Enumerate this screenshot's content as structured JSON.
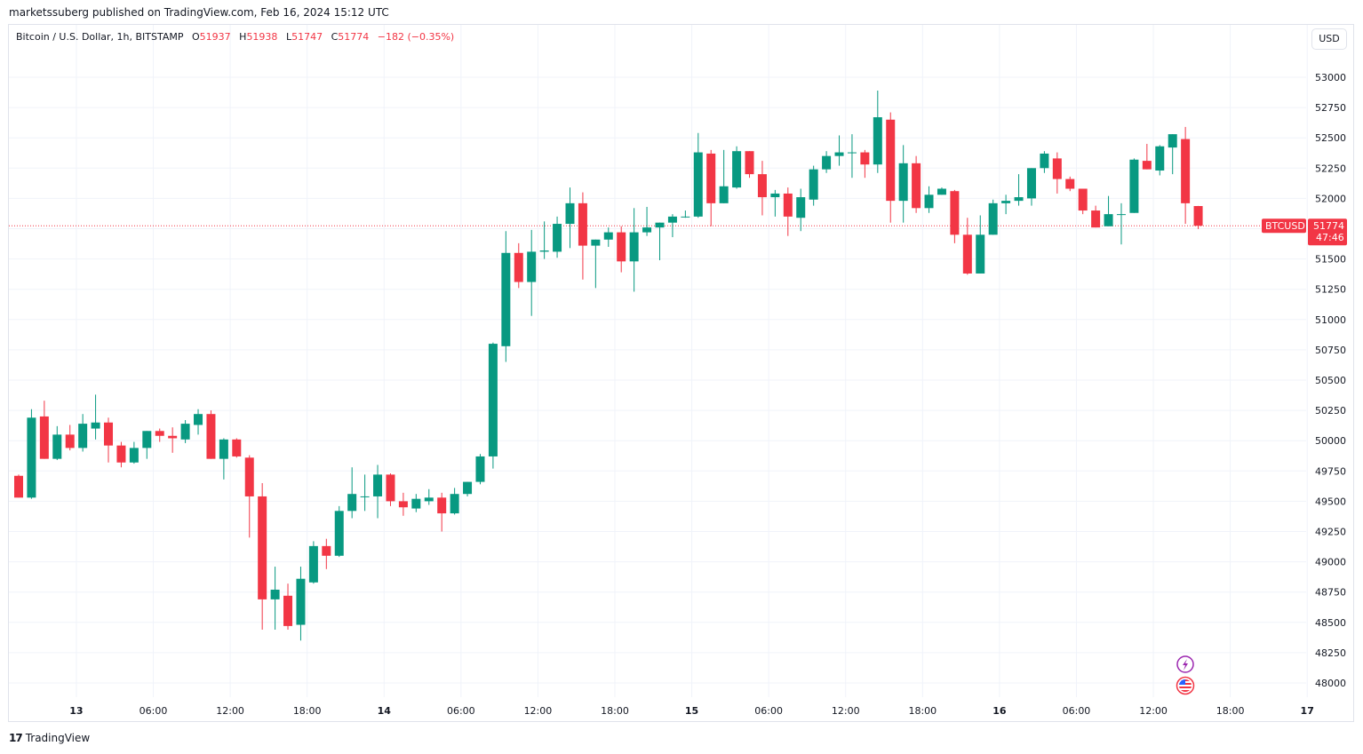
{
  "header": {
    "publish_line": "marketssuberg published on TradingView.com, Feb 16, 2024 15:12 UTC"
  },
  "legend": {
    "symbol": "Bitcoin / U.S. Dollar, 1h, BITSTAMP",
    "open_label": "O",
    "open": "51937",
    "high_label": "H",
    "high": "51938",
    "low_label": "L",
    "low": "51747",
    "close_label": "C",
    "close": "51774",
    "change": "−182 (−0.35%)"
  },
  "toolbar": {
    "currency_label": "USD"
  },
  "price_badge": {
    "symbol": "BTCUSD",
    "price": "51774",
    "countdown": "47:46"
  },
  "footer": {
    "brand": "TradingView"
  },
  "colors": {
    "up": "#089981",
    "down": "#f23645",
    "grid": "#f0f3fa"
  },
  "icons": [
    "lightning-event-icon",
    "us-flag-event-icon"
  ],
  "chart_data": {
    "type": "candlestick",
    "interval": "1h",
    "ylim": [
      47850,
      53200
    ],
    "y_ticks": [
      48000,
      48250,
      48500,
      48750,
      49000,
      49250,
      49500,
      49750,
      50000,
      50250,
      50500,
      50750,
      51000,
      51250,
      51500,
      51750,
      52000,
      52250,
      52500,
      52750,
      53000
    ],
    "x_ticks": [
      {
        "label": "13",
        "day": true,
        "index": 4.5
      },
      {
        "label": "06:00",
        "day": false,
        "index": 10.5
      },
      {
        "label": "12:00",
        "day": false,
        "index": 16.5
      },
      {
        "label": "18:00",
        "day": false,
        "index": 22.5
      },
      {
        "label": "14",
        "day": true,
        "index": 28.5
      },
      {
        "label": "06:00",
        "day": false,
        "index": 34.5
      },
      {
        "label": "12:00",
        "day": false,
        "index": 40.5
      },
      {
        "label": "18:00",
        "day": false,
        "index": 46.5
      },
      {
        "label": "15",
        "day": true,
        "index": 52.5
      },
      {
        "label": "06:00",
        "day": false,
        "index": 58.5
      },
      {
        "label": "12:00",
        "day": false,
        "index": 64.5
      },
      {
        "label": "18:00",
        "day": false,
        "index": 70.5
      },
      {
        "label": "16",
        "day": true,
        "index": 76.5
      },
      {
        "label": "06:00",
        "day": false,
        "index": 82.5
      },
      {
        "label": "12:00",
        "day": false,
        "index": 88.5
      },
      {
        "label": "18:00",
        "day": false,
        "index": 94.5
      },
      {
        "label": "17",
        "day": true,
        "index": 100.5
      }
    ],
    "current_price": 51774,
    "candles": [
      {
        "o": 49710,
        "h": 49720,
        "l": 49530,
        "c": 49530
      },
      {
        "o": 49530,
        "h": 50260,
        "l": 49520,
        "c": 50190
      },
      {
        "o": 50200,
        "h": 50330,
        "l": 49850,
        "c": 49850
      },
      {
        "o": 49850,
        "h": 50120,
        "l": 49840,
        "c": 50050
      },
      {
        "o": 50050,
        "h": 50130,
        "l": 49920,
        "c": 49940
      },
      {
        "o": 49940,
        "h": 50220,
        "l": 49910,
        "c": 50140
      },
      {
        "o": 50100,
        "h": 50380,
        "l": 50010,
        "c": 50150
      },
      {
        "o": 50150,
        "h": 50190,
        "l": 49820,
        "c": 49960
      },
      {
        "o": 49960,
        "h": 49990,
        "l": 49780,
        "c": 49820
      },
      {
        "o": 49820,
        "h": 49990,
        "l": 49810,
        "c": 49940
      },
      {
        "o": 49940,
        "h": 50080,
        "l": 49850,
        "c": 50080
      },
      {
        "o": 50080,
        "h": 50100,
        "l": 49990,
        "c": 50040
      },
      {
        "o": 50040,
        "h": 50110,
        "l": 49900,
        "c": 50020
      },
      {
        "o": 50010,
        "h": 50170,
        "l": 49980,
        "c": 50140
      },
      {
        "o": 50130,
        "h": 50260,
        "l": 50050,
        "c": 50220
      },
      {
        "o": 50220,
        "h": 50250,
        "l": 49850,
        "c": 49850
      },
      {
        "o": 49850,
        "h": 50020,
        "l": 49680,
        "c": 50010
      },
      {
        "o": 50010,
        "h": 50020,
        "l": 49860,
        "c": 49870
      },
      {
        "o": 49860,
        "h": 49880,
        "l": 49200,
        "c": 49540
      },
      {
        "o": 49540,
        "h": 49650,
        "l": 48440,
        "c": 48690
      },
      {
        "o": 48690,
        "h": 48960,
        "l": 48440,
        "c": 48770
      },
      {
        "o": 48720,
        "h": 48820,
        "l": 48440,
        "c": 48470
      },
      {
        "o": 48480,
        "h": 48960,
        "l": 48350,
        "c": 48860
      },
      {
        "o": 48830,
        "h": 49170,
        "l": 48820,
        "c": 49130
      },
      {
        "o": 49130,
        "h": 49190,
        "l": 48940,
        "c": 49050
      },
      {
        "o": 49050,
        "h": 49460,
        "l": 49040,
        "c": 49420
      },
      {
        "o": 49420,
        "h": 49780,
        "l": 49360,
        "c": 49560
      },
      {
        "o": 49540,
        "h": 49720,
        "l": 49420,
        "c": 49540
      },
      {
        "o": 49540,
        "h": 49800,
        "l": 49360,
        "c": 49720
      },
      {
        "o": 49720,
        "h": 49730,
        "l": 49460,
        "c": 49500
      },
      {
        "o": 49500,
        "h": 49570,
        "l": 49380,
        "c": 49450
      },
      {
        "o": 49440,
        "h": 49560,
        "l": 49410,
        "c": 49520
      },
      {
        "o": 49500,
        "h": 49600,
        "l": 49470,
        "c": 49530
      },
      {
        "o": 49530,
        "h": 49570,
        "l": 49250,
        "c": 49400
      },
      {
        "o": 49400,
        "h": 49610,
        "l": 49390,
        "c": 49560
      },
      {
        "o": 49560,
        "h": 49640,
        "l": 49540,
        "c": 49660
      },
      {
        "o": 49660,
        "h": 49890,
        "l": 49640,
        "c": 49870
      },
      {
        "o": 49870,
        "h": 50810,
        "l": 49770,
        "c": 50800
      },
      {
        "o": 50780,
        "h": 51730,
        "l": 50650,
        "c": 51550
      },
      {
        "o": 51550,
        "h": 51630,
        "l": 51260,
        "c": 51310
      },
      {
        "o": 51310,
        "h": 51740,
        "l": 51030,
        "c": 51560
      },
      {
        "o": 51560,
        "h": 51810,
        "l": 51500,
        "c": 51570
      },
      {
        "o": 51560,
        "h": 51850,
        "l": 51510,
        "c": 51790
      },
      {
        "o": 51790,
        "h": 52090,
        "l": 51590,
        "c": 51960
      },
      {
        "o": 51960,
        "h": 52050,
        "l": 51330,
        "c": 51610
      },
      {
        "o": 51610,
        "h": 51660,
        "l": 51260,
        "c": 51660
      },
      {
        "o": 51660,
        "h": 51760,
        "l": 51600,
        "c": 51720
      },
      {
        "o": 51720,
        "h": 51770,
        "l": 51390,
        "c": 51480
      },
      {
        "o": 51480,
        "h": 51920,
        "l": 51230,
        "c": 51720
      },
      {
        "o": 51720,
        "h": 51930,
        "l": 51690,
        "c": 51760
      },
      {
        "o": 51760,
        "h": 51780,
        "l": 51490,
        "c": 51800
      },
      {
        "o": 51800,
        "h": 51870,
        "l": 51680,
        "c": 51850
      },
      {
        "o": 51850,
        "h": 51900,
        "l": 51840,
        "c": 51850
      },
      {
        "o": 51850,
        "h": 52540,
        "l": 51840,
        "c": 52380
      },
      {
        "o": 52370,
        "h": 52400,
        "l": 51770,
        "c": 51960
      },
      {
        "o": 51960,
        "h": 52400,
        "l": 51970,
        "c": 52100
      },
      {
        "o": 52090,
        "h": 52430,
        "l": 52080,
        "c": 52390
      },
      {
        "o": 52390,
        "h": 52390,
        "l": 52170,
        "c": 52200
      },
      {
        "o": 52200,
        "h": 52310,
        "l": 51860,
        "c": 52010
      },
      {
        "o": 52010,
        "h": 52070,
        "l": 51850,
        "c": 52040
      },
      {
        "o": 52040,
        "h": 52090,
        "l": 51690,
        "c": 51850
      },
      {
        "o": 51840,
        "h": 52080,
        "l": 51730,
        "c": 52010
      },
      {
        "o": 51990,
        "h": 52270,
        "l": 51940,
        "c": 52240
      },
      {
        "o": 52240,
        "h": 52390,
        "l": 52210,
        "c": 52350
      },
      {
        "o": 52350,
        "h": 52520,
        "l": 52270,
        "c": 52380
      },
      {
        "o": 52380,
        "h": 52530,
        "l": 52170,
        "c": 52380
      },
      {
        "o": 52380,
        "h": 52400,
        "l": 52170,
        "c": 52280
      },
      {
        "o": 52280,
        "h": 52890,
        "l": 52210,
        "c": 52670
      },
      {
        "o": 52650,
        "h": 52710,
        "l": 51800,
        "c": 51980
      },
      {
        "o": 51980,
        "h": 52440,
        "l": 51800,
        "c": 52290
      },
      {
        "o": 52290,
        "h": 52350,
        "l": 51880,
        "c": 51920
      },
      {
        "o": 51920,
        "h": 52100,
        "l": 51880,
        "c": 52030
      },
      {
        "o": 52030,
        "h": 52090,
        "l": 52040,
        "c": 52080
      },
      {
        "o": 52060,
        "h": 52070,
        "l": 51630,
        "c": 51700
      },
      {
        "o": 51700,
        "h": 51840,
        "l": 51370,
        "c": 51380
      },
      {
        "o": 51380,
        "h": 51860,
        "l": 51380,
        "c": 51700
      },
      {
        "o": 51700,
        "h": 51990,
        "l": 51700,
        "c": 51960
      },
      {
        "o": 51960,
        "h": 52030,
        "l": 51870,
        "c": 51980
      },
      {
        "o": 51980,
        "h": 52200,
        "l": 51940,
        "c": 52010
      },
      {
        "o": 52000,
        "h": 52250,
        "l": 51940,
        "c": 52250
      },
      {
        "o": 52250,
        "h": 52390,
        "l": 52210,
        "c": 52370
      },
      {
        "o": 52330,
        "h": 52380,
        "l": 52040,
        "c": 52160
      },
      {
        "o": 52160,
        "h": 52180,
        "l": 52060,
        "c": 52080
      },
      {
        "o": 52080,
        "h": 52060,
        "l": 51870,
        "c": 51900
      },
      {
        "o": 51900,
        "h": 51940,
        "l": 51760,
        "c": 51760
      },
      {
        "o": 51770,
        "h": 52020,
        "l": 51770,
        "c": 51870
      },
      {
        "o": 51870,
        "h": 51960,
        "l": 51620,
        "c": 51870
      },
      {
        "o": 51880,
        "h": 52330,
        "l": 51880,
        "c": 52320
      },
      {
        "o": 52310,
        "h": 52450,
        "l": 52250,
        "c": 52240
      },
      {
        "o": 52230,
        "h": 52440,
        "l": 52190,
        "c": 52430
      },
      {
        "o": 52420,
        "h": 52530,
        "l": 52200,
        "c": 52530
      },
      {
        "o": 52490,
        "h": 52590,
        "l": 51790,
        "c": 51960
      },
      {
        "o": 51937,
        "h": 51938,
        "l": 51747,
        "c": 51774
      }
    ]
  }
}
